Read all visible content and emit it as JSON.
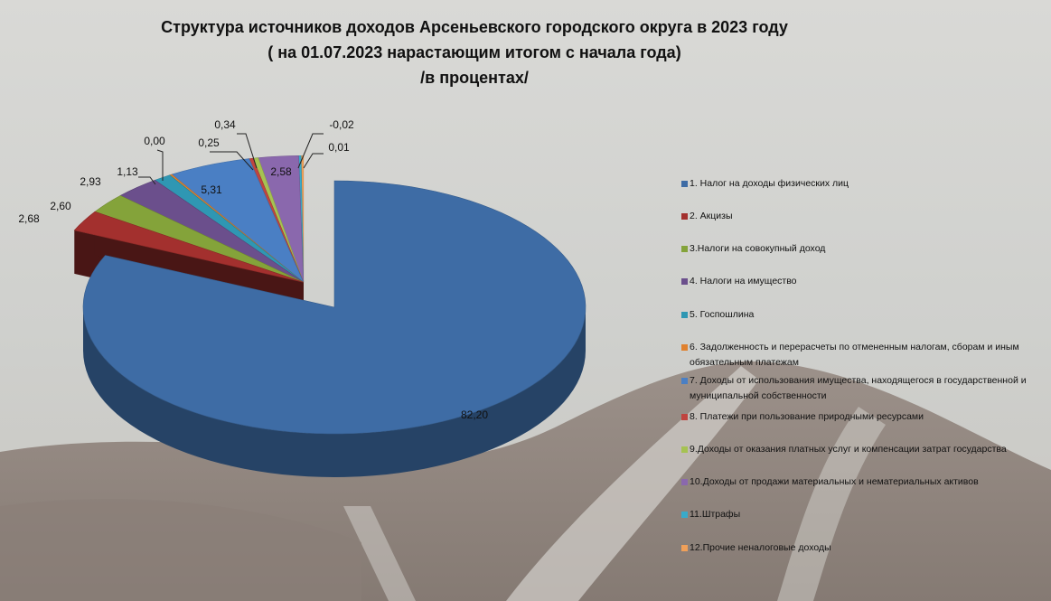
{
  "title": {
    "line1": "Структура источников доходов Арсеньевского городского округа в 2023 году",
    "line2": "( на 01.07.2023 нарастающим итогом с начала года)",
    "line3": "/в процентах/"
  },
  "chart_data": {
    "type": "pie",
    "style": "3d-exploded",
    "title": "Структура источников доходов Арсеньевского городского округа в 2023 году ( на 01.07.2023 нарастающим итогом с начала года) /в процентах/",
    "legend_position": "right",
    "slices": [
      {
        "name": "1. Налог на  доходы физических лиц",
        "value": 82.2,
        "label": "82,20",
        "color": "#3e6ca5"
      },
      {
        "name": "2. Акцизы",
        "value": 2.68,
        "label": "2,68",
        "color": "#a3302e"
      },
      {
        "name": "3.Налоги на совокупный доход",
        "value": 2.6,
        "label": "2,60",
        "color": "#84a33a"
      },
      {
        "name": "4. Налоги на имущество",
        "value": 2.93,
        "label": "2,93",
        "color": "#6b4f8c"
      },
      {
        "name": "5. Госпошлина",
        "value": 1.13,
        "label": "1,13",
        "color": "#2f97b3"
      },
      {
        "name": "6. Задолженность и перерасчеты по отмененным налогам, сборам и иным обязательным платежам",
        "value": 0.0,
        "label": "0,00",
        "color": "#e0812e"
      },
      {
        "name": "7. Доходы от использования имущества, находящегося в государственной и муниципальной собственности",
        "value": 5.31,
        "label": "5,31",
        "color": "#4a7fc4"
      },
      {
        "name": "8. Платежи при пользование природными ресурсами",
        "value": 0.25,
        "label": "0,25",
        "color": "#c0443f"
      },
      {
        "name": "9.Доходы от оказания платных услуг и  компенсации затрат государства",
        "value": 0.34,
        "label": "0,34",
        "color": "#a6c252"
      },
      {
        "name": "10.Доходы от продажи материальных и нематериальных активов",
        "value": 2.58,
        "label": "2,58",
        "color": "#8a68ad"
      },
      {
        "name": "11.Штрафы",
        "value": -0.02,
        "label": "-0,02",
        "color": "#39aac9"
      },
      {
        "name": "12.Прочие неналоговые доходы",
        "value": 0.01,
        "label": "0,01",
        "color": "#f0a059"
      }
    ]
  }
}
